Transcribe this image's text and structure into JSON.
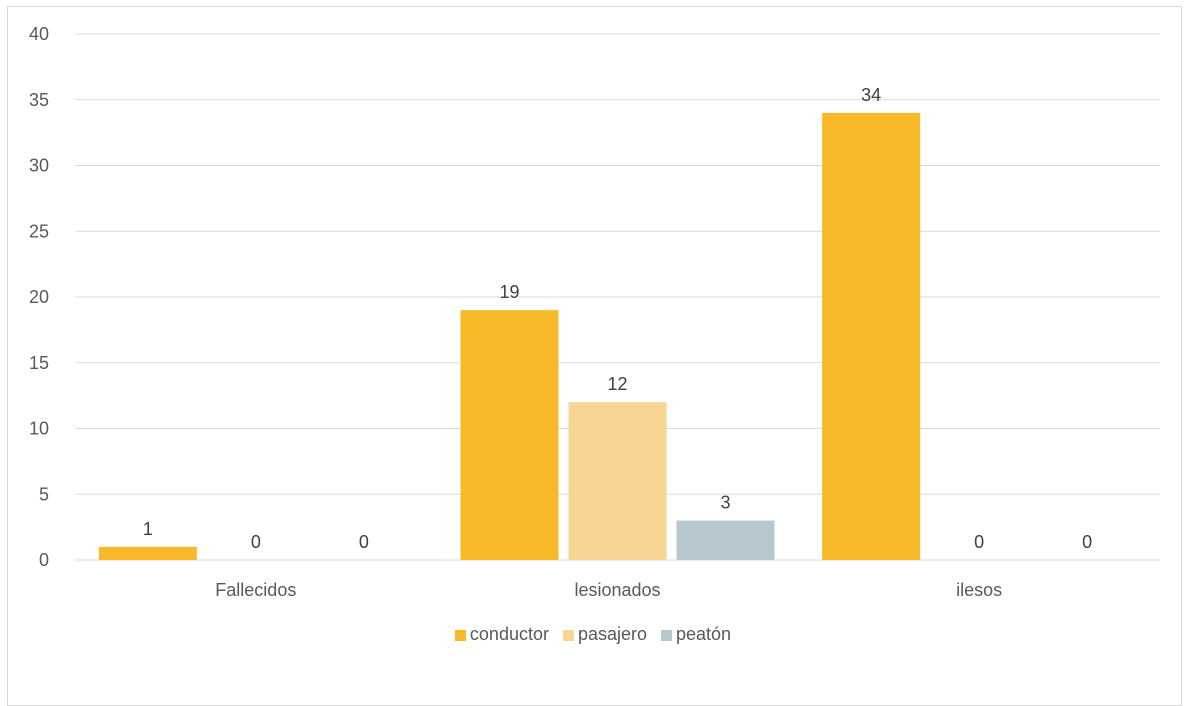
{
  "chart_data": {
    "type": "bar",
    "categories": [
      "Fallecidos",
      "lesionados",
      "ilesos"
    ],
    "series": [
      {
        "name": "conductor",
        "values": [
          1,
          19,
          34
        ],
        "color": "#F7B928"
      },
      {
        "name": "pasajero",
        "values": [
          0,
          12,
          0
        ],
        "color": "#F8D595"
      },
      {
        "name": "peatón",
        "values": [
          0,
          3,
          0
        ],
        "color": "#B7C7CF"
      }
    ],
    "ylim": [
      0,
      40
    ],
    "yticks": [
      0,
      5,
      10,
      15,
      20,
      25,
      30,
      35,
      40
    ],
    "grid": true,
    "legend_position": "bottom",
    "data_labels": true
  }
}
